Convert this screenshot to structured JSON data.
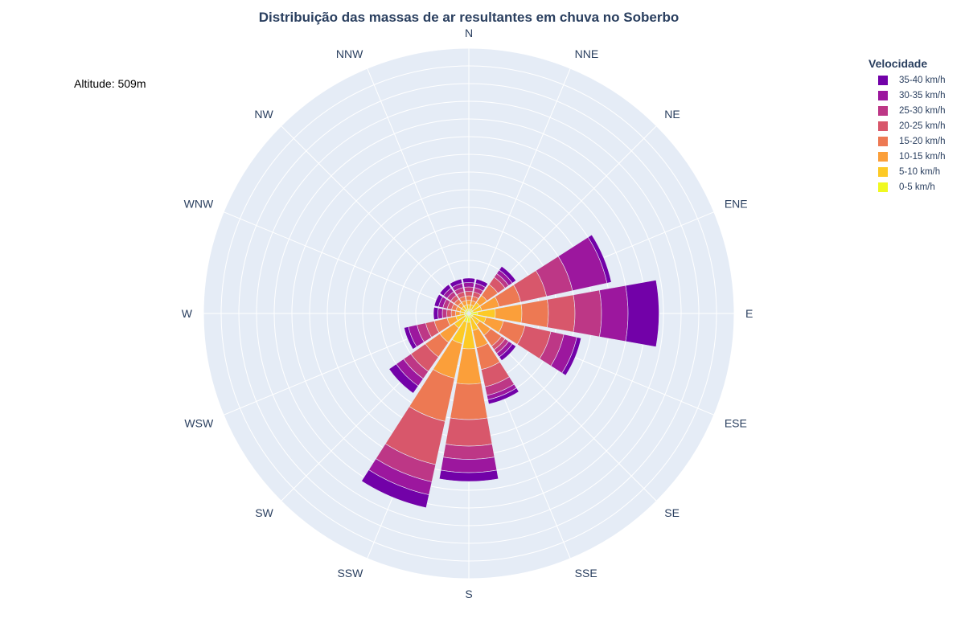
{
  "chart_data": {
    "type": "barpolar",
    "title": "Distribuição das massas de ar resultantes em chuva no Soberbo",
    "annotation": "Altitude: 509m",
    "legend_title": "Velocidade",
    "legend_placement": "top-right",
    "directions": [
      "N",
      "NNE",
      "NE",
      "ENE",
      "E",
      "ESE",
      "SE",
      "SSE",
      "S",
      "SSW",
      "SW",
      "WSW",
      "W",
      "WNW",
      "NW",
      "NNW"
    ],
    "radial_range": [
      0,
      30
    ],
    "radial_grid_step": 2,
    "angular_grid": true,
    "colors": {
      "background": "#e5ecf6",
      "grid": "#ffffff",
      "text": "#2a3f5f"
    },
    "series": [
      {
        "name": "0-5 km/h",
        "color": "#f0f921",
        "values": [
          0.5,
          0.5,
          0.5,
          0.5,
          1,
          0.5,
          0.5,
          0.5,
          1,
          1,
          0.5,
          0.5,
          0.5,
          0.5,
          0.5,
          0.5
        ]
      },
      {
        "name": "5-10 km/h",
        "color": "#fdca26",
        "values": [
          0.5,
          0.5,
          1,
          1,
          2,
          1.5,
          1,
          1.5,
          3,
          2.5,
          1.5,
          1,
          0.5,
          0.5,
          0.5,
          0.5
        ]
      },
      {
        "name": "10-15 km/h",
        "color": "#fb9f3a",
        "values": [
          0.5,
          0.5,
          1,
          2,
          3,
          2,
          1.5,
          2,
          4,
          4,
          2,
          1,
          0.5,
          0.5,
          0.5,
          0.5
        ]
      },
      {
        "name": "15-20 km/h",
        "color": "#ed7953",
        "values": [
          0.5,
          0.5,
          1.5,
          2.5,
          3,
          2.5,
          1.5,
          2.5,
          4,
          5,
          2,
          1.5,
          0.5,
          0.5,
          0.5,
          0.5
        ]
      },
      {
        "name": "20-25 km/h",
        "color": "#d8576b",
        "values": [
          0.5,
          0.5,
          1,
          3,
          3,
          3,
          0.5,
          2,
          3,
          5,
          2,
          1,
          0.5,
          0.5,
          0.5,
          0.5
        ]
      },
      {
        "name": "25-30 km/h",
        "color": "#bd3786",
        "values": [
          0.5,
          0.5,
          0.5,
          3,
          3,
          1.5,
          0.5,
          1,
          1.5,
          2,
          1,
          1,
          0.5,
          0.5,
          0.5,
          0.5
        ]
      },
      {
        "name": "30-35 km/h",
        "color": "#9c179e",
        "values": [
          0.5,
          0.5,
          0.5,
          4,
          3,
          1.5,
          0.5,
          0.5,
          1.5,
          1.5,
          1,
          1,
          0.5,
          0.5,
          0.5,
          0.5
        ]
      },
      {
        "name": "35-40 km/h",
        "color": "#7201a8",
        "values": [
          0.5,
          0.5,
          0.5,
          0.5,
          3.5,
          0.5,
          0.5,
          0.5,
          1,
          1.5,
          1,
          0.5,
          0.5,
          0.5,
          0.5,
          0.5
        ]
      }
    ]
  }
}
